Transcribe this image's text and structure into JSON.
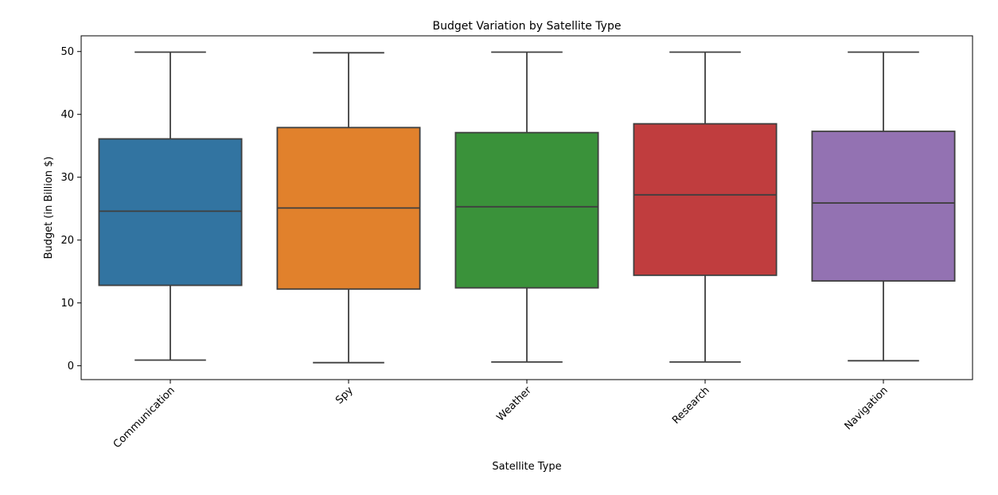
{
  "chart_data": {
    "type": "box",
    "title": "Budget Variation by Satellite Type",
    "xlabel": "Satellite Type",
    "ylabel": "Budget (in Billion $)",
    "ylim": [
      -2.2,
      52.5
    ],
    "yticks": [
      0,
      10,
      20,
      30,
      40,
      50
    ],
    "grid": false,
    "categories": [
      "Communication",
      "Spy",
      "Weather",
      "Research",
      "Navigation"
    ],
    "colors": [
      "#3274a1",
      "#e1812c",
      "#3a923a",
      "#c03d3e",
      "#9372b2"
    ],
    "series": [
      {
        "category": "Communication",
        "min": 0.9,
        "q1": 12.8,
        "median": 24.6,
        "q3": 36.1,
        "max": 49.9
      },
      {
        "category": "Spy",
        "min": 0.5,
        "q1": 12.2,
        "median": 25.1,
        "q3": 37.9,
        "max": 49.8
      },
      {
        "category": "Weather",
        "min": 0.6,
        "q1": 12.4,
        "median": 25.3,
        "q3": 37.1,
        "max": 49.9
      },
      {
        "category": "Research",
        "min": 0.6,
        "q1": 14.4,
        "median": 27.2,
        "q3": 38.5,
        "max": 49.9
      },
      {
        "category": "Navigation",
        "min": 0.8,
        "q1": 13.5,
        "median": 25.9,
        "q3": 37.3,
        "max": 49.9
      }
    ]
  }
}
